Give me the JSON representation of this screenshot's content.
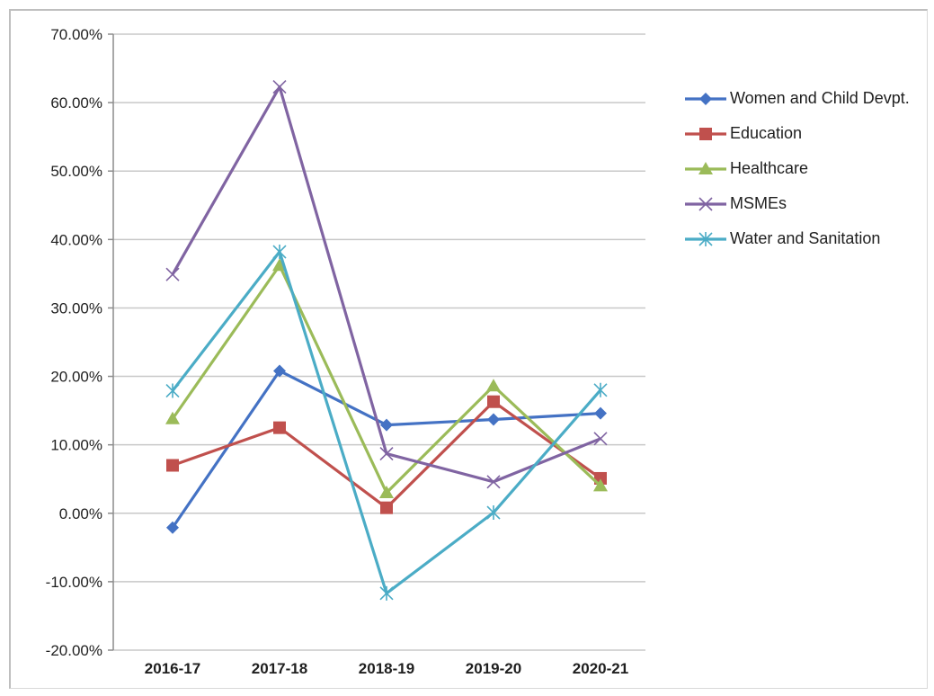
{
  "chart_data": {
    "type": "line",
    "title": "",
    "xlabel": "",
    "ylabel": "",
    "categories": [
      "2016-17",
      "2017-18",
      "2018-19",
      "2019-20",
      "2020-21"
    ],
    "ylim": [
      -20,
      70
    ],
    "ytick_step": 10,
    "ytick_labels": [
      "70.00%",
      "60.00%",
      "50.00%",
      "40.00%",
      "30.00%",
      "20.00%",
      "10.00%",
      "0.00%",
      "-10.00%",
      "-20.00%"
    ],
    "grid": true,
    "legend_position": "right",
    "series": [
      {
        "name": "Women and Child Devpt.",
        "color": "#4472c4",
        "marker": "diamond",
        "values": [
          -2.1,
          20.8,
          12.9,
          13.7,
          14.6
        ]
      },
      {
        "name": "Education",
        "color": "#c0504d",
        "marker": "square",
        "values": [
          7.0,
          12.5,
          0.8,
          16.3,
          5.1
        ]
      },
      {
        "name": "Healthcare",
        "color": "#9bbb59",
        "marker": "triangle",
        "values": [
          13.8,
          36.2,
          3.0,
          18.6,
          4.0
        ]
      },
      {
        "name": "MSMEs",
        "color": "#8064a2",
        "marker": "x",
        "values": [
          34.9,
          62.3,
          8.7,
          4.6,
          10.9
        ]
      },
      {
        "name": "Water and Sanitation",
        "color": "#4bacc6",
        "marker": "star",
        "values": [
          17.9,
          38.2,
          -11.7,
          0.1,
          18.0
        ]
      }
    ]
  }
}
